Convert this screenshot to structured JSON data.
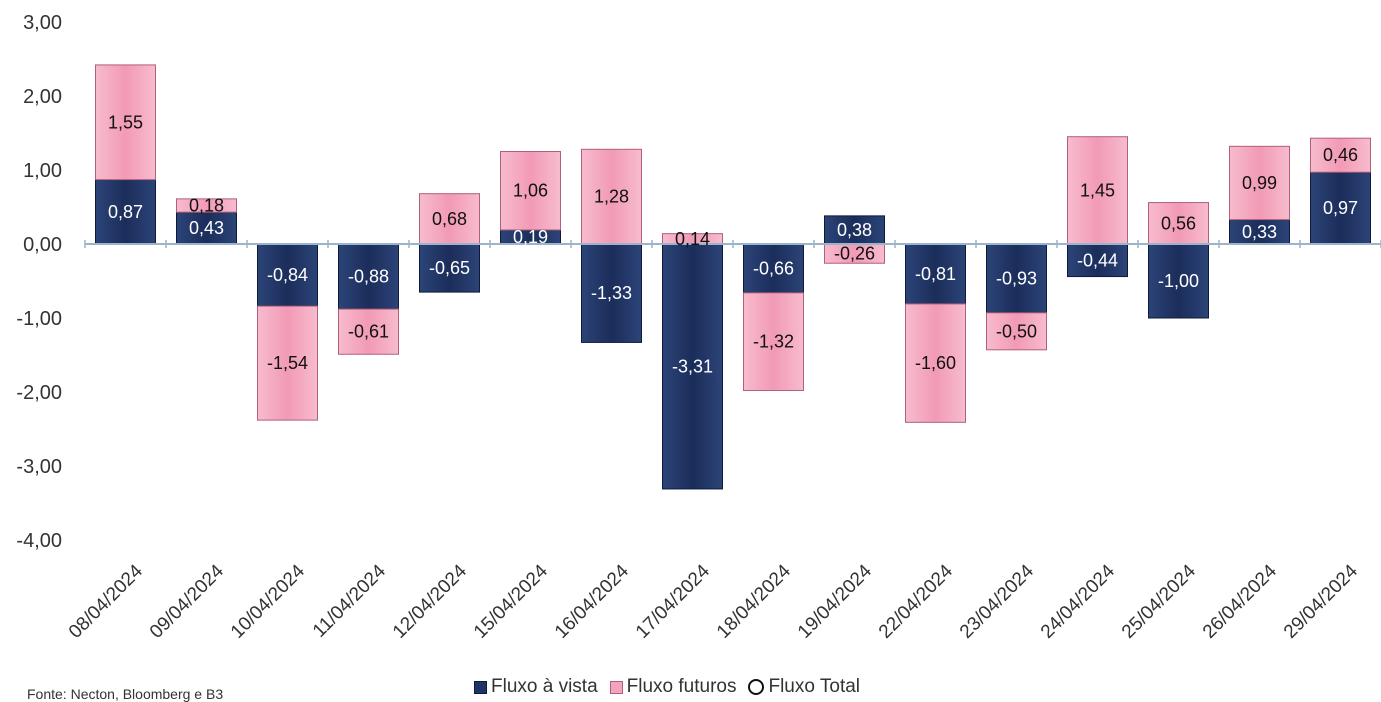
{
  "chart_data": {
    "type": "bar",
    "stacked": true,
    "categories": [
      "08/04/2024",
      "09/04/2024",
      "10/04/2024",
      "11/04/2024",
      "12/04/2024",
      "15/04/2024",
      "16/04/2024",
      "17/04/2024",
      "18/04/2024",
      "19/04/2024",
      "22/04/2024",
      "23/04/2024",
      "24/04/2024",
      "25/04/2024",
      "26/04/2024",
      "29/04/2024"
    ],
    "series": [
      {
        "name": "Fluxo à vista",
        "color": "#1f3464",
        "values": [
          0.87,
          0.43,
          -0.84,
          -0.88,
          -0.65,
          0.19,
          -1.33,
          -3.31,
          -0.66,
          0.38,
          -0.81,
          -0.93,
          -0.44,
          -1.0,
          0.33,
          0.97
        ],
        "labels": [
          "0,87",
          "0,43",
          "-0,84",
          "-0,88",
          "-0,65",
          "0,19",
          "-1,33",
          "-3,31",
          "-0,66",
          "0,38",
          "-0,81",
          "-0,93",
          "-0,44",
          "-1,00",
          "0,33",
          "0,97"
        ]
      },
      {
        "name": "Fluxo futuros",
        "color": "#f4a5bd",
        "values": [
          1.55,
          0.18,
          -1.54,
          -0.61,
          0.68,
          1.06,
          1.28,
          0.14,
          -1.32,
          -0.26,
          -1.6,
          -0.5,
          1.45,
          0.56,
          0.99,
          0.46
        ],
        "labels": [
          "1,55",
          "0,18",
          "-1,54",
          "-0,61",
          "0,68",
          "1,06",
          "1,28",
          "0,14",
          "-1,32",
          "-0,26",
          "-1,60",
          "-0,50",
          "1,45",
          "0,56",
          "0,99",
          "0,46"
        ]
      }
    ],
    "legend_total": "Fluxo Total",
    "yticks": [
      "3,00",
      "2,00",
      "1,00",
      "0,00",
      "-1,00",
      "-2,00",
      "-3,00",
      "-4,00"
    ],
    "ytick_values": [
      3,
      2,
      1,
      0,
      -1,
      -2,
      -3,
      -4
    ],
    "ylim": [
      -4,
      3
    ],
    "legend_position": "bottom",
    "source": "Fonte: Necton, Bloomberg e B3"
  }
}
